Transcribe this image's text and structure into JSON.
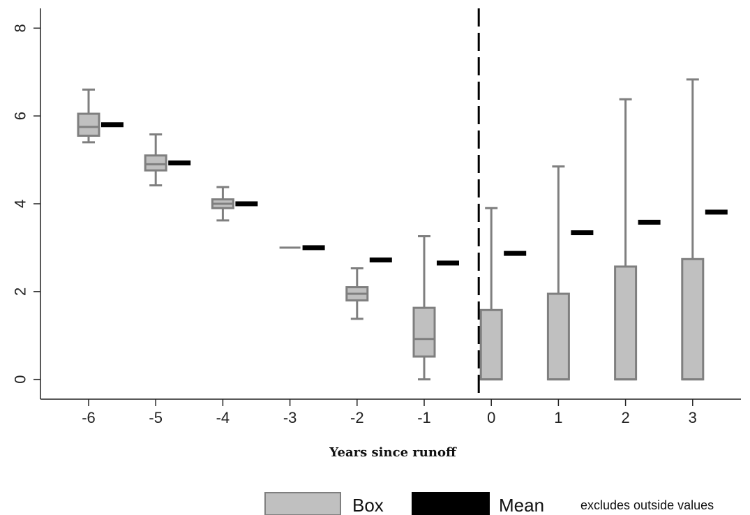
{
  "chart_data": {
    "type": "box",
    "xlabel": "Years since runoff",
    "ylabel": "",
    "categories": [
      "-6",
      "-5",
      "-4",
      "-3",
      "-2",
      "-1",
      "0",
      "1",
      "2",
      "3"
    ],
    "yticks": [
      "0",
      "2",
      "4",
      "6",
      "8"
    ],
    "ylim": [
      -0.45,
      8.45
    ],
    "grid": false,
    "reference_line_x": "0",
    "box_color": "#c0c0c0",
    "box_edge_color": "#7f7f7f",
    "mean_color": "#000000",
    "boxes": [
      {
        "category": "-6",
        "whisker_low": 5.4,
        "q1": 5.55,
        "median": 5.75,
        "q3": 6.05,
        "whisker_high": 6.6,
        "mean": 5.8
      },
      {
        "category": "-5",
        "whisker_low": 4.42,
        "q1": 4.76,
        "median": 4.9,
        "q3": 5.1,
        "whisker_high": 5.58,
        "mean": 4.93
      },
      {
        "category": "-4",
        "whisker_low": 3.62,
        "q1": 3.9,
        "median": 4.0,
        "q3": 4.1,
        "whisker_high": 4.38,
        "mean": 4.0
      },
      {
        "category": "-3",
        "whisker_low": 3.0,
        "q1": 3.0,
        "median": 3.0,
        "q3": 3.0,
        "whisker_high": 3.0,
        "mean": 3.0
      },
      {
        "category": "-2",
        "whisker_low": 1.38,
        "q1": 1.8,
        "median": 1.95,
        "q3": 2.1,
        "whisker_high": 2.53,
        "mean": 2.72
      },
      {
        "category": "-1",
        "whisker_low": 0.0,
        "q1": 0.52,
        "median": 0.92,
        "q3": 1.63,
        "whisker_high": 3.26,
        "mean": 2.65
      },
      {
        "category": "0",
        "whisker_low": 0.0,
        "q1": 0.0,
        "median": 0.0,
        "q3": 1.58,
        "whisker_high": 3.9,
        "mean": 2.87
      },
      {
        "category": "1",
        "whisker_low": 0.0,
        "q1": 0.0,
        "median": 0.0,
        "q3": 1.95,
        "whisker_high": 4.85,
        "mean": 3.34
      },
      {
        "category": "2",
        "whisker_low": 0.0,
        "q1": 0.0,
        "median": 0.0,
        "q3": 2.57,
        "whisker_high": 6.38,
        "mean": 3.58
      },
      {
        "category": "3",
        "whisker_low": 0.0,
        "q1": 0.0,
        "median": 0.0,
        "q3": 2.74,
        "whisker_high": 6.83,
        "mean": 3.81
      }
    ],
    "legend": {
      "placement": "bottom-right",
      "box_label": "Box",
      "mean_label": "Mean",
      "note": "excludes outside values"
    }
  }
}
